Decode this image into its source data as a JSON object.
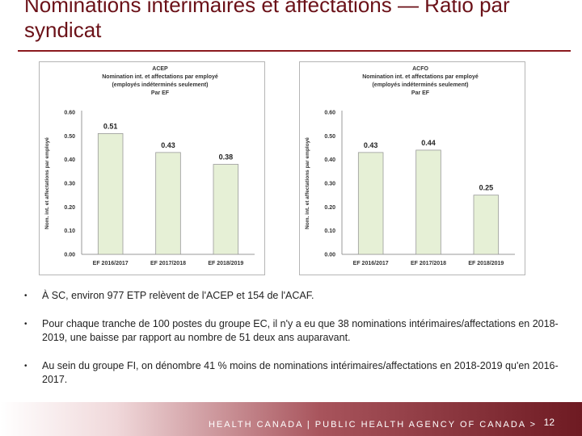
{
  "slide": {
    "title": "Nominations intérimaires et affectations — Ratio par syndicat",
    "page_number": "12"
  },
  "footer": {
    "text": "HEALTH CANADA | PUBLIC HEALTH AGENCY OF CANADA >"
  },
  "bullets": [
    "À SC, environ 977 ETP relèvent de l'ACEP et 154 de l'ACAF.",
    "Pour chaque tranche de 100 postes du groupe EC, il n'y a eu que 38 nominations intérimaires/affectations en 2018-2019, une baisse par rapport au nombre de 51 deux ans auparavant.",
    "Au sein du groupe FI, on dénombre 41 % moins de nominations intérimaires/affectations en 2018-2019 qu'en 2016-2017."
  ],
  "colors": {
    "bar_fill": "#e6f0d6",
    "bar_stroke": "#9a9a9a",
    "title": "#6b1118"
  },
  "chart_data": [
    {
      "type": "bar",
      "title_lines": [
        "ACEP",
        "Nomination int. et affectations par employé",
        "(employés indéterminés seulement)",
        "Par EF"
      ],
      "ylabel": "Nom. int. et affectations par employé",
      "xlabel": "",
      "categories": [
        "EF 2016/2017",
        "EF 2017/2018",
        "EF 2018/2019"
      ],
      "values": [
        0.51,
        0.43,
        0.38
      ],
      "labels": [
        "0.51",
        "0.43",
        "0.38"
      ],
      "yticks": [
        "0.00",
        "0.10",
        "0.20",
        "0.30",
        "0.40",
        "0.50",
        "0.60"
      ],
      "ylim": [
        0,
        0.6
      ],
      "grid": false,
      "legend": "none"
    },
    {
      "type": "bar",
      "title_lines": [
        "ACFO",
        "Nomination int. et affectations par employé",
        "(employés indéterminés seulement)",
        "Par EF"
      ],
      "ylabel": "Nom. int. et affectations par employé",
      "xlabel": "",
      "categories": [
        "EF 2016/2017",
        "EF 2017/2018",
        "EF 2018/2019"
      ],
      "values": [
        0.43,
        0.44,
        0.25
      ],
      "labels": [
        "0.43",
        "0.44",
        "0.25"
      ],
      "yticks": [
        "0.00",
        "0.10",
        "0.20",
        "0.30",
        "0.40",
        "0.50",
        "0.60"
      ],
      "ylim": [
        0,
        0.6
      ],
      "grid": false,
      "legend": "none"
    }
  ]
}
